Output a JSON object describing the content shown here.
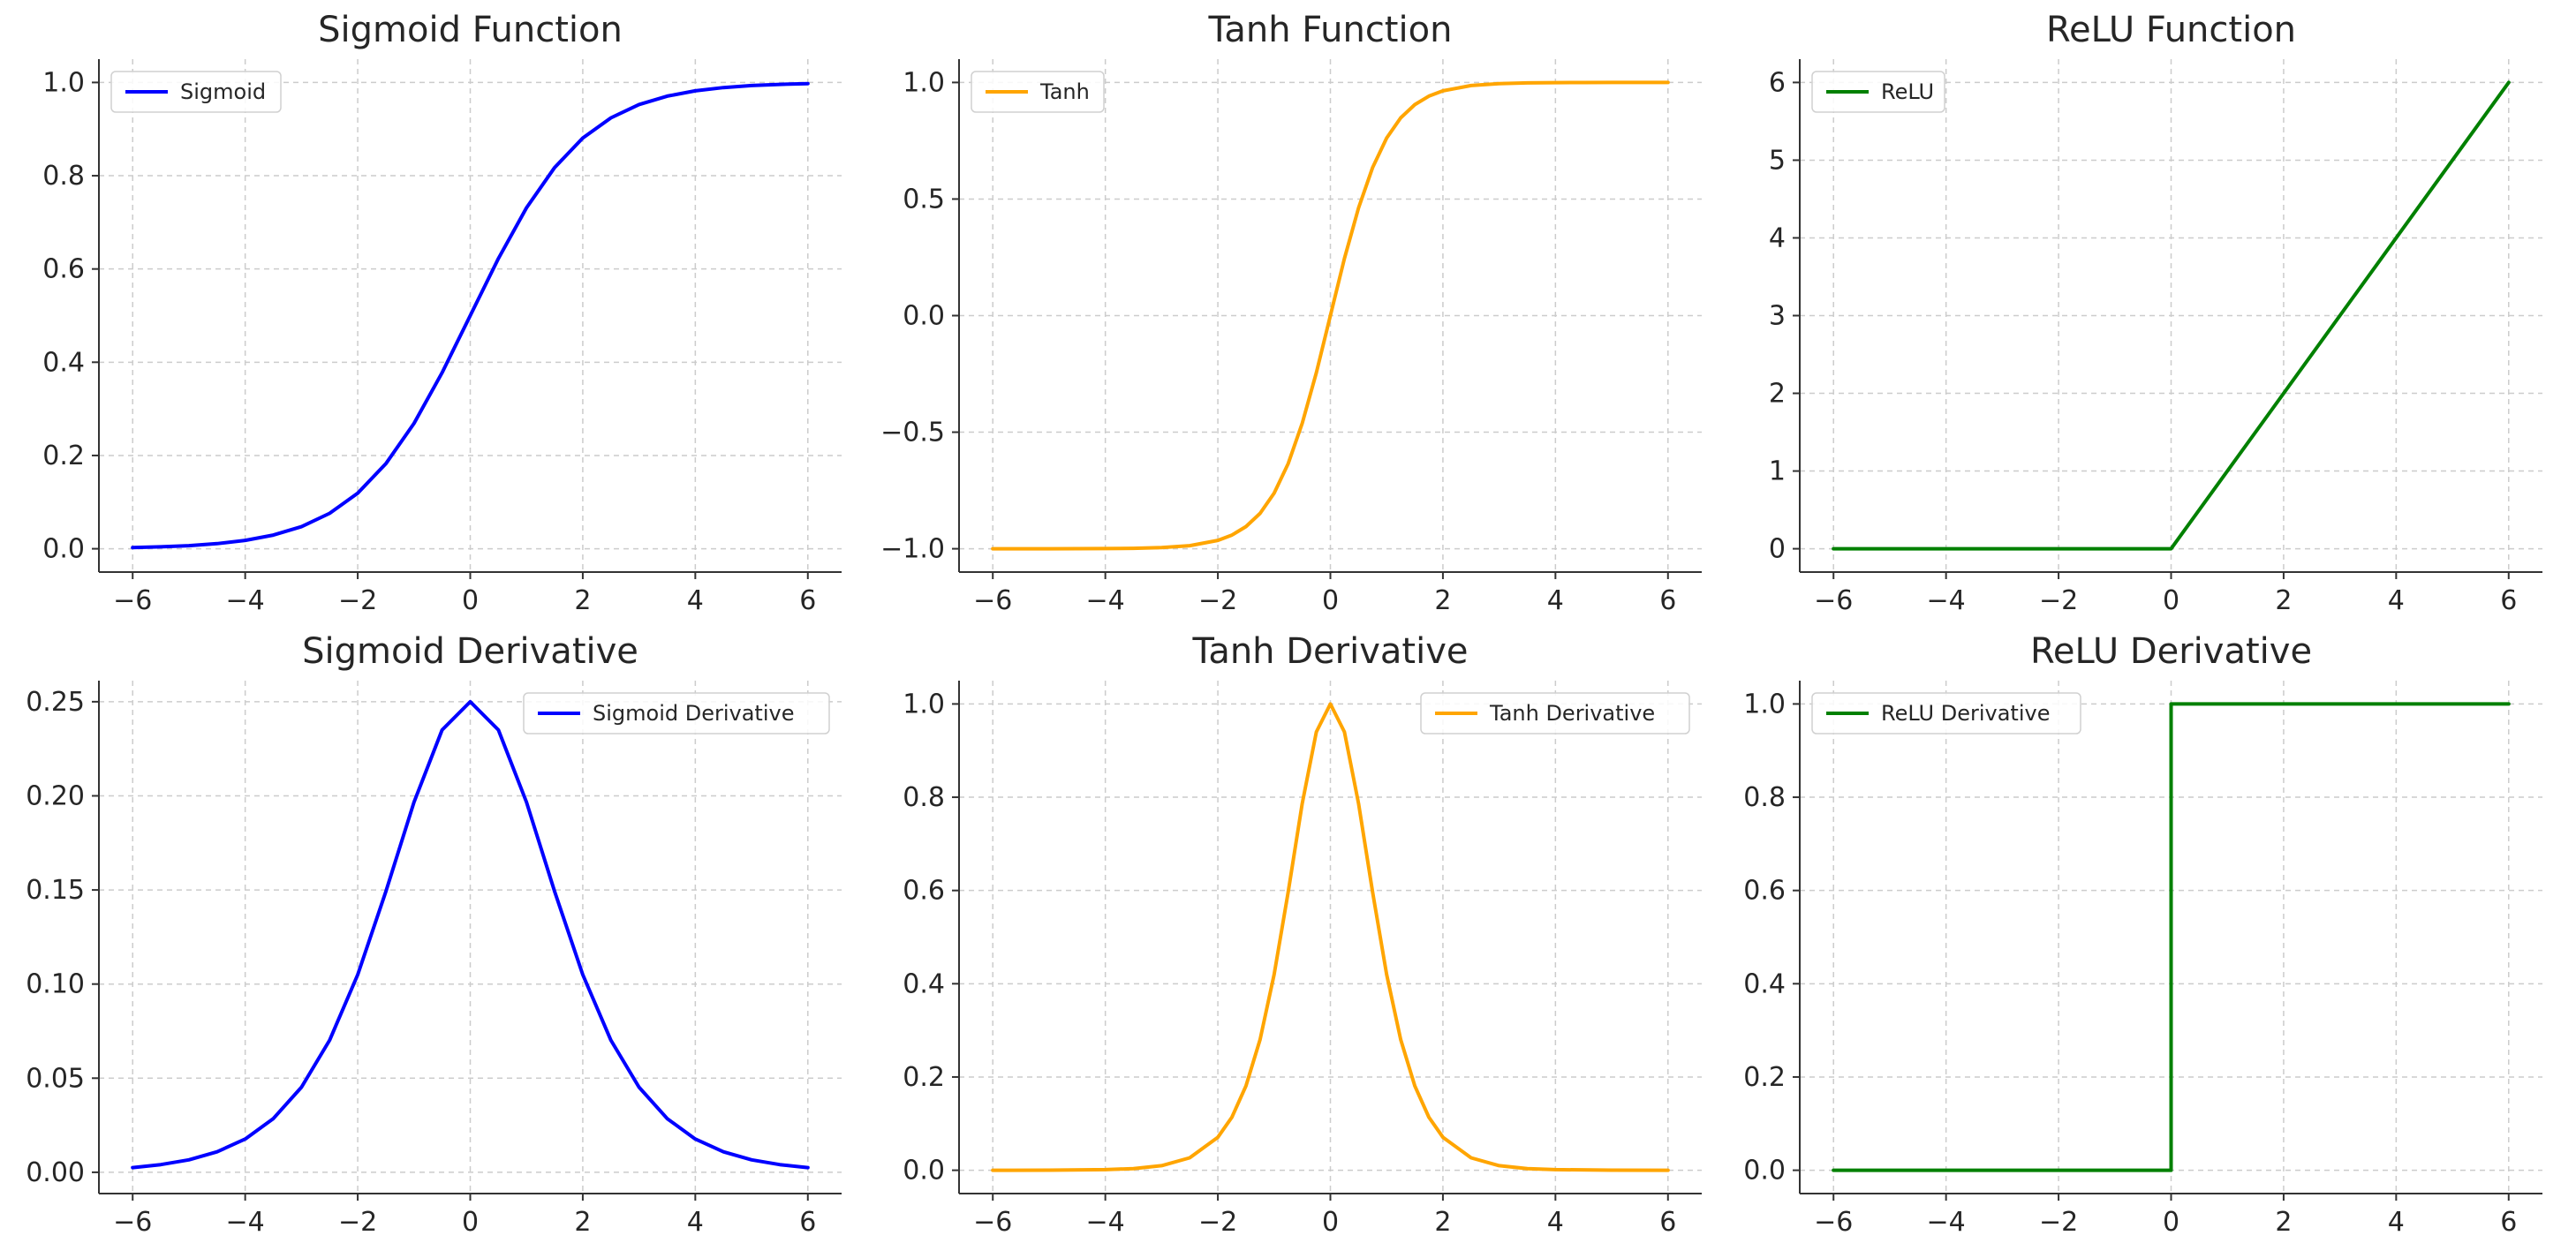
{
  "chart_data": [
    {
      "type": "line",
      "title": "Sigmoid Function",
      "xlim": [
        -6.6,
        6.6
      ],
      "ylim": [
        -0.05,
        1.05
      ],
      "xticks": [
        -6,
        -4,
        -2,
        0,
        2,
        4,
        6
      ],
      "xtick_labels": [
        "−6",
        "−4",
        "−2",
        "0",
        "2",
        "4",
        "6"
      ],
      "yticks": [
        0.0,
        0.2,
        0.4,
        0.6,
        0.8,
        1.0
      ],
      "ytick_labels": [
        "0.0",
        "0.2",
        "0.4",
        "0.6",
        "0.8",
        "1.0"
      ],
      "legend_loc": "upper left",
      "series": [
        {
          "name": "Sigmoid",
          "color": "#0000ff",
          "x": [
            -6,
            -5.5,
            -5,
            -4.5,
            -4,
            -3.5,
            -3,
            -2.5,
            -2,
            -1.5,
            -1,
            -0.5,
            0,
            0.5,
            1,
            1.5,
            2,
            2.5,
            3,
            3.5,
            4,
            4.5,
            5,
            5.5,
            6
          ],
          "y": [
            0.0025,
            0.0041,
            0.0067,
            0.011,
            0.018,
            0.0293,
            0.0474,
            0.0759,
            0.1192,
            0.1824,
            0.2689,
            0.3775,
            0.5,
            0.6225,
            0.7311,
            0.8176,
            0.8808,
            0.9241,
            0.9526,
            0.9707,
            0.982,
            0.989,
            0.9933,
            0.9959,
            0.9975
          ]
        }
      ]
    },
    {
      "type": "line",
      "title": "Tanh Function",
      "xlim": [
        -6.6,
        6.6
      ],
      "ylim": [
        -1.1,
        1.1
      ],
      "xticks": [
        -6,
        -4,
        -2,
        0,
        2,
        4,
        6
      ],
      "xtick_labels": [
        "−6",
        "−4",
        "−2",
        "0",
        "2",
        "4",
        "6"
      ],
      "yticks": [
        -1.0,
        -0.5,
        0.0,
        0.5,
        1.0
      ],
      "ytick_labels": [
        "−1.0",
        "−0.5",
        "0.0",
        "0.5",
        "1.0"
      ],
      "legend_loc": "upper left",
      "series": [
        {
          "name": "Tanh",
          "color": "#ffa500",
          "x": [
            -6,
            -5.5,
            -5,
            -4.5,
            -4,
            -3.5,
            -3,
            -2.5,
            -2,
            -1.75,
            -1.5,
            -1.25,
            -1,
            -0.75,
            -0.5,
            -0.25,
            0,
            0.25,
            0.5,
            0.75,
            1,
            1.25,
            1.5,
            1.75,
            2,
            2.5,
            3,
            3.5,
            4,
            4.5,
            5,
            5.5,
            6
          ],
          "y": [
            -1.0,
            -1.0,
            -0.9999,
            -0.9998,
            -0.9993,
            -0.9982,
            -0.9951,
            -0.9866,
            -0.964,
            -0.9414,
            -0.9051,
            -0.8483,
            -0.7616,
            -0.6351,
            -0.4621,
            -0.2449,
            0,
            0.2449,
            0.4621,
            0.6351,
            0.7616,
            0.8483,
            0.9051,
            0.9414,
            0.964,
            0.9866,
            0.9951,
            0.9982,
            0.9993,
            0.9998,
            0.9999,
            1.0,
            1.0
          ]
        }
      ]
    },
    {
      "type": "line",
      "title": "ReLU Function",
      "xlim": [
        -6.6,
        6.6
      ],
      "ylim": [
        -0.3,
        6.3
      ],
      "xticks": [
        -6,
        -4,
        -2,
        0,
        2,
        4,
        6
      ],
      "xtick_labels": [
        "−6",
        "−4",
        "−2",
        "0",
        "2",
        "4",
        "6"
      ],
      "yticks": [
        0,
        1,
        2,
        3,
        4,
        5,
        6
      ],
      "ytick_labels": [
        "0",
        "1",
        "2",
        "3",
        "4",
        "5",
        "6"
      ],
      "legend_loc": "upper left",
      "series": [
        {
          "name": "ReLU",
          "color": "#008000",
          "x": [
            -6,
            0,
            6
          ],
          "y": [
            0,
            0,
            6
          ]
        }
      ]
    },
    {
      "type": "line",
      "title": "Sigmoid Derivative",
      "xlim": [
        -6.6,
        6.6
      ],
      "ylim": [
        -0.0113,
        0.2612
      ],
      "xticks": [
        -6,
        -4,
        -2,
        0,
        2,
        4,
        6
      ],
      "xtick_labels": [
        "−6",
        "−4",
        "−2",
        "0",
        "2",
        "4",
        "6"
      ],
      "yticks": [
        0.0,
        0.05,
        0.1,
        0.15,
        0.2,
        0.25
      ],
      "ytick_labels": [
        "0.00",
        "0.05",
        "0.10",
        "0.15",
        "0.20",
        "0.25"
      ],
      "legend_loc": "upper right",
      "series": [
        {
          "name": "Sigmoid Derivative",
          "color": "#0000ff",
          "x": [
            -6,
            -5.5,
            -5,
            -4.5,
            -4,
            -3.5,
            -3,
            -2.5,
            -2,
            -1.5,
            -1,
            -0.5,
            0,
            0.5,
            1,
            1.5,
            2,
            2.5,
            3,
            3.5,
            4,
            4.5,
            5,
            5.5,
            6
          ],
          "y": [
            0.0025,
            0.0041,
            0.0066,
            0.0109,
            0.0177,
            0.0285,
            0.0452,
            0.0701,
            0.105,
            0.1491,
            0.1966,
            0.235,
            0.25,
            0.235,
            0.1966,
            0.1491,
            0.105,
            0.0701,
            0.0452,
            0.0285,
            0.0177,
            0.0109,
            0.0066,
            0.0041,
            0.0025
          ]
        }
      ]
    },
    {
      "type": "line",
      "title": "Tanh Derivative",
      "xlim": [
        -6.6,
        6.6
      ],
      "ylim": [
        -0.05,
        1.05
      ],
      "xticks": [
        -6,
        -4,
        -2,
        0,
        2,
        4,
        6
      ],
      "xtick_labels": [
        "−6",
        "−4",
        "−2",
        "0",
        "2",
        "4",
        "6"
      ],
      "yticks": [
        0.0,
        0.2,
        0.4,
        0.6,
        0.8,
        1.0
      ],
      "ytick_labels": [
        "0.0",
        "0.2",
        "0.4",
        "0.6",
        "0.8",
        "1.0"
      ],
      "legend_loc": "upper right",
      "series": [
        {
          "name": "Tanh Derivative",
          "color": "#ffa500",
          "x": [
            -6,
            -5,
            -4,
            -3.5,
            -3,
            -2.5,
            -2,
            -1.75,
            -1.5,
            -1.25,
            -1,
            -0.75,
            -0.5,
            -0.25,
            0,
            0.25,
            0.5,
            0.75,
            1,
            1.25,
            1.5,
            1.75,
            2,
            2.5,
            3,
            3.5,
            4,
            5,
            6
          ],
          "y": [
            0,
            0.0002,
            0.0013,
            0.0036,
            0.0099,
            0.0266,
            0.0707,
            0.1138,
            0.1807,
            0.2804,
            0.42,
            0.5966,
            0.7864,
            0.94,
            1.0,
            0.94,
            0.7864,
            0.5966,
            0.42,
            0.2804,
            0.1807,
            0.1138,
            0.0707,
            0.0266,
            0.0099,
            0.0036,
            0.0013,
            0.0002,
            0
          ]
        }
      ]
    },
    {
      "type": "line",
      "title": "ReLU Derivative",
      "xlim": [
        -6.6,
        6.6
      ],
      "ylim": [
        -0.05,
        1.05
      ],
      "xticks": [
        -6,
        -4,
        -2,
        0,
        2,
        4,
        6
      ],
      "xtick_labels": [
        "−6",
        "−4",
        "−2",
        "0",
        "2",
        "4",
        "6"
      ],
      "yticks": [
        0.0,
        0.2,
        0.4,
        0.6,
        0.8,
        1.0
      ],
      "ytick_labels": [
        "0.0",
        "0.2",
        "0.4",
        "0.6",
        "0.8",
        "1.0"
      ],
      "legend_loc": "upper left",
      "series": [
        {
          "name": "ReLU Derivative",
          "color": "#008000",
          "x": [
            -6,
            0,
            0,
            6
          ],
          "y": [
            0,
            0,
            1,
            1
          ]
        }
      ]
    }
  ]
}
